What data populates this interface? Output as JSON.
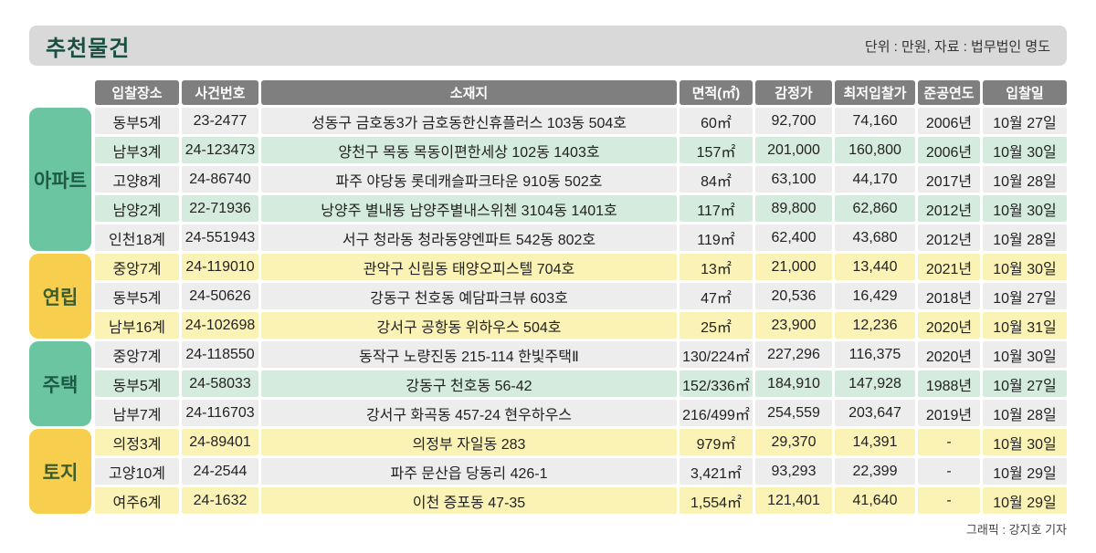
{
  "title": "추천물건",
  "unit_note": "단위 : 만원, 자료 : 법무법인 명도",
  "credit": "그래픽 : 강지호 기자",
  "colors": {
    "title_text": "#184f41",
    "title_bar_bg": "#d9d9d9",
    "header_bg": "#7f7f7f",
    "green_badge": "#6bc5a1",
    "yellow_badge": "#f8ce4e",
    "green_row": "#d5ebdd",
    "yellow_row": "#fbf2b6",
    "gray_row": "#ededed"
  },
  "chart_data": {
    "type": "table",
    "columns": {
      "place": "입찰장소",
      "case_no": "사건번호",
      "address": "소재지",
      "area": "면적(㎡)",
      "appraisal": "감정가",
      "min_bid": "최저입찰가",
      "year": "준공연도",
      "date": "입찰일"
    },
    "categories": [
      {
        "label": "아파트",
        "rows": [
          {
            "place": "동부5계",
            "case_no": "23-2477",
            "address": "성동구 금호동3가 금호동한신휴플러스 103동 504호",
            "area": "60㎡",
            "appraisal": "92,700",
            "min_bid": "74,160",
            "year": "2006년",
            "date": "10월 27일"
          },
          {
            "place": "남부3계",
            "case_no": "24-123473",
            "address": "양천구 목동 목동이편한세상 102동 1403호",
            "area": "157㎡",
            "appraisal": "201,000",
            "min_bid": "160,800",
            "year": "2006년",
            "date": "10월 30일"
          },
          {
            "place": "고양8계",
            "case_no": "24-86740",
            "address": "파주 야당동 롯데캐슬파크타운 910동 502호",
            "area": "84㎡",
            "appraisal": "63,100",
            "min_bid": "44,170",
            "year": "2017년",
            "date": "10월 28일"
          },
          {
            "place": "남양2계",
            "case_no": "22-71936",
            "address": "낭양주 별내동 남양주별내스위첸 3104동 1401호",
            "area": "117㎡",
            "appraisal": "89,800",
            "min_bid": "62,860",
            "year": "2012년",
            "date": "10월 30일"
          },
          {
            "place": "인천18계",
            "case_no": "24-551943",
            "address": "서구 청라동 청라동양엔파트 542동 802호",
            "area": "119㎡",
            "appraisal": "62,400",
            "min_bid": "43,680",
            "year": "2012년",
            "date": "10월 28일"
          }
        ]
      },
      {
        "label": "연립",
        "rows": [
          {
            "place": "중앙7계",
            "case_no": "24-119010",
            "address": "관악구 신림동 태양오피스텔 704호",
            "area": "13㎡",
            "appraisal": "21,000",
            "min_bid": "13,440",
            "year": "2021년",
            "date": "10월 30일"
          },
          {
            "place": "동부5계",
            "case_no": "24-50626",
            "address": "강동구 천호동 예담파크뷰 603호",
            "area": "47㎡",
            "appraisal": "20,536",
            "min_bid": "16,429",
            "year": "2018년",
            "date": "10월 27일"
          },
          {
            "place": "남부16계",
            "case_no": "24-102698",
            "address": "강서구 공항동 위하우스 504호",
            "area": "25㎡",
            "appraisal": "23,900",
            "min_bid": "12,236",
            "year": "2020년",
            "date": "10월 31일"
          }
        ]
      },
      {
        "label": "주택",
        "rows": [
          {
            "place": "중앙7계",
            "case_no": "24-118550",
            "address": "동작구 노량진동 215-114 한빛주택Ⅱ",
            "area": "130/224㎡",
            "appraisal": "227,296",
            "min_bid": "116,375",
            "year": "2020년",
            "date": "10월 30일"
          },
          {
            "place": "동부5계",
            "case_no": "24-58033",
            "address": "강동구 천호동 56-42",
            "area": "152/336㎡",
            "appraisal": "184,910",
            "min_bid": "147,928",
            "year": "1988년",
            "date": "10월 27일"
          },
          {
            "place": "남부7계",
            "case_no": "24-116703",
            "address": "강서구 화곡동 457-24 현우하우스",
            "area": "216/499㎡",
            "appraisal": "254,559",
            "min_bid": "203,647",
            "year": "2019년",
            "date": "10월 28일"
          }
        ]
      },
      {
        "label": "토지",
        "rows": [
          {
            "place": "의정3계",
            "case_no": "24-89401",
            "address": "의정부 자일동 283",
            "area": "979㎡",
            "appraisal": "29,370",
            "min_bid": "14,391",
            "year": "-",
            "date": "10월 30일"
          },
          {
            "place": "고양10계",
            "case_no": "24-2544",
            "address": "파주 문산읍 당동리 426-1",
            "area": "3,421㎡",
            "appraisal": "93,293",
            "min_bid": "22,399",
            "year": "-",
            "date": "10월 29일"
          },
          {
            "place": "여주6계",
            "case_no": "24-1632",
            "address": "이천 증포동 47-35",
            "area": "1,554㎡",
            "appraisal": "121,401",
            "min_bid": "41,640",
            "year": "-",
            "date": "10월 29일"
          }
        ]
      }
    ]
  }
}
